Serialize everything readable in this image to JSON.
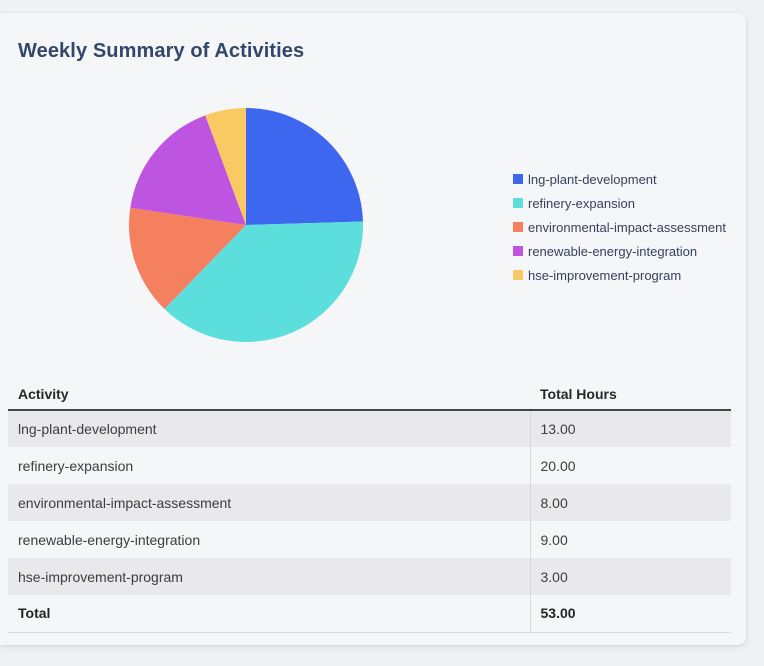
{
  "title": "Weekly Summary of Activities",
  "colors": {
    "page_background": "#eff1f4",
    "card_background": "#f5f6f8",
    "title_text": "#33476b",
    "legend_text": "#36415c",
    "row_stripe": "#e9e9ec",
    "header_border": "#43464c"
  },
  "chart_data": {
    "type": "pie",
    "categories": [
      "lng-plant-development",
      "refinery-expansion",
      "environmental-impact-assessment",
      "renewable-energy-integration",
      "hse-improvement-program"
    ],
    "values": [
      13,
      20,
      8,
      9,
      3
    ],
    "colors": [
      "#3D67EE",
      "#5CDEDC",
      "#F4805F",
      "#BE55E0",
      "#F9C963"
    ],
    "title": "",
    "legend_position": "right",
    "start_angle_deg": 0,
    "direction": "clockwise",
    "total": 53
  },
  "table": {
    "columns": [
      "Activity",
      "Total Hours"
    ],
    "rows": [
      {
        "activity": "lng-plant-development",
        "hours": "13.00"
      },
      {
        "activity": "refinery-expansion",
        "hours": "20.00"
      },
      {
        "activity": "environmental-impact-assessment",
        "hours": "8.00"
      },
      {
        "activity": "renewable-energy-integration",
        "hours": "9.00"
      },
      {
        "activity": "hse-improvement-program",
        "hours": "3.00"
      }
    ],
    "total_row": {
      "label": "Total",
      "hours": "53.00"
    }
  }
}
